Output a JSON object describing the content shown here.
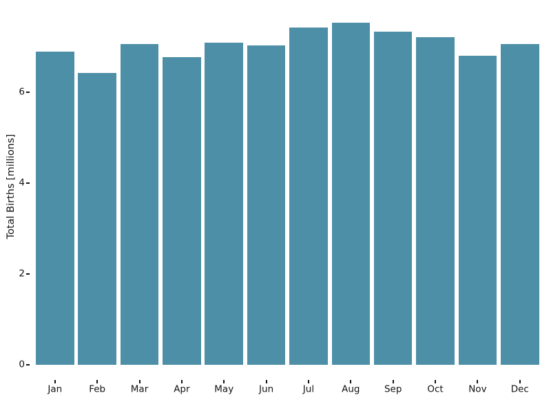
{
  "chart_data": {
    "type": "bar",
    "title": "",
    "xlabel": "",
    "ylabel": "Total Births [millions]",
    "categories": [
      "Jan",
      "Feb",
      "Mar",
      "Apr",
      "May",
      "Jun",
      "Jul",
      "Aug",
      "Sep",
      "Oct",
      "Nov",
      "Dec"
    ],
    "values": [
      6.88,
      6.42,
      7.06,
      6.76,
      7.08,
      7.02,
      7.41,
      7.52,
      7.32,
      7.2,
      6.79,
      7.05
    ],
    "yticks": [
      0,
      2,
      4,
      6
    ],
    "ylim": [
      0,
      8
    ],
    "grid": false,
    "legend": null,
    "bar_color": "#4d8fa6",
    "text_color": "#111111",
    "background_color": "#ffffff"
  }
}
